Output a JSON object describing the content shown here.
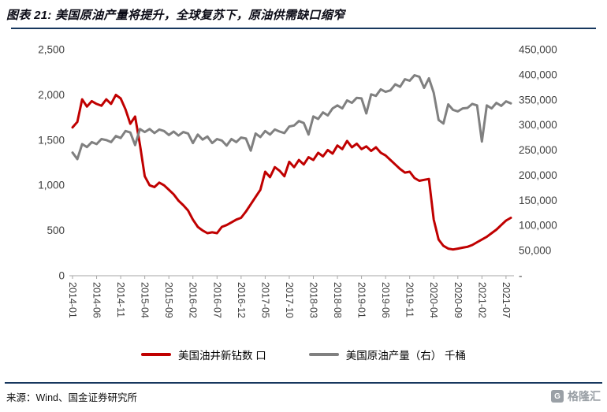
{
  "header": {
    "title": "图表 21: 美国原油产量将提升，全球复苏下，原油供需缺口缩窄"
  },
  "footer": {
    "source": "来源：Wind、国金证券研究所",
    "logo_text": "格隆汇",
    "logo_icon": "G"
  },
  "colors": {
    "red": "#C00000",
    "gray": "#808080",
    "navy": "#17375E",
    "axis_line": "#A6A6A6",
    "axis_label": "#3F3F3F"
  },
  "chart_data": {
    "type": "line",
    "title": "美国原油产量将提升，全球复苏下，原油供需缺口缩窄",
    "xlabel": "",
    "ylabel": "",
    "grid": false,
    "legend_position": "bottom",
    "x_start": "2014-01",
    "x_interval_months": 1,
    "x_tick_every": 5,
    "x_tick_labels": [
      "2014-01",
      "2014-06",
      "2014-11",
      "2015-04",
      "2015-09",
      "2016-02",
      "2016-07",
      "2016-12",
      "2017-05",
      "2017-10",
      "2018-03",
      "2018-08",
      "2019-01",
      "2019-06",
      "2019-11",
      "2020-04",
      "2020-09",
      "2021-02",
      "2021-07"
    ],
    "left_axis": {
      "min": 0,
      "max": 2500,
      "step": 500,
      "tick_labels": [
        "2,500",
        "2,000",
        "1,500",
        "1,000",
        "500",
        "0"
      ]
    },
    "right_axis": {
      "min": 0,
      "max": 450000,
      "step": 50000,
      "tick_labels": [
        "450,000",
        "400,000",
        "350,000",
        "300,000",
        "250,000",
        "200,000",
        "150,000",
        "100,000",
        "50,000",
        "-"
      ]
    },
    "series": [
      {
        "name": "美国油井新钻数 口",
        "axis": "left",
        "color": "#C00000",
        "values": [
          1640,
          1700,
          1950,
          1870,
          1930,
          1900,
          1880,
          1950,
          1900,
          2000,
          1960,
          1840,
          1680,
          1760,
          1450,
          1100,
          1000,
          980,
          1030,
          1000,
          950,
          900,
          830,
          780,
          720,
          620,
          540,
          500,
          470,
          480,
          470,
          540,
          560,
          590,
          620,
          640,
          710,
          790,
          870,
          950,
          1150,
          1090,
          1200,
          1160,
          1100,
          1260,
          1200,
          1280,
          1230,
          1310,
          1280,
          1360,
          1320,
          1390,
          1350,
          1440,
          1400,
          1490,
          1420,
          1460,
          1400,
          1430,
          1380,
          1420,
          1360,
          1330,
          1280,
          1230,
          1180,
          1140,
          1150,
          1080,
          1050,
          1060,
          1070,
          620,
          400,
          330,
          300,
          290,
          300,
          310,
          320,
          340,
          370,
          400,
          430,
          470,
          510,
          560,
          610,
          640
        ]
      },
      {
        "name": "美国原油产量（右） 千桶",
        "axis": "right",
        "color": "#808080",
        "values": [
          245000,
          232000,
          262000,
          256000,
          266000,
          262000,
          272000,
          270000,
          266000,
          278000,
          274000,
          288000,
          285000,
          260000,
          292000,
          286000,
          292000,
          284000,
          291000,
          288000,
          280000,
          287000,
          279000,
          286000,
          283000,
          264000,
          281000,
          271000,
          277000,
          264000,
          272000,
          269000,
          259000,
          272000,
          266000,
          275000,
          273000,
          249000,
          283000,
          276000,
          288000,
          281000,
          291000,
          287000,
          284000,
          297000,
          299000,
          308000,
          304000,
          281000,
          317000,
          312000,
          325000,
          319000,
          333000,
          339000,
          333000,
          349000,
          344000,
          354000,
          353000,
          323000,
          361000,
          358000,
          371000,
          366000,
          369000,
          381000,
          376000,
          391000,
          388000,
          399000,
          396000,
          374000,
          393000,
          364000,
          310000,
          303000,
          341000,
          330000,
          327000,
          333000,
          334000,
          342000,
          339000,
          267000,
          339000,
          333000,
          344000,
          338000,
          347000,
          343000
        ]
      }
    ]
  }
}
